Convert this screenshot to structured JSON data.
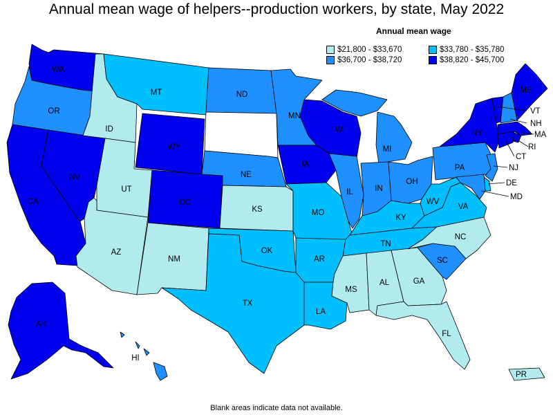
{
  "title": "Annual mean wage of helpers--production workers, by state, May 2022",
  "legend": {
    "title": "Annual mean wage",
    "items": [
      {
        "label": "$21,800 - $33,670",
        "color": "#b2ebee"
      },
      {
        "label": "$33,780 - $35,780",
        "color": "#00bfff"
      },
      {
        "label": "$36,700 - $38,720",
        "color": "#1e90ff"
      },
      {
        "label": "$38,820 - $45,700",
        "color": "#0000ee"
      }
    ]
  },
  "footnote": "Blank areas indicate data not available.",
  "states": {
    "WA": "#0000ee",
    "OR": "#1e90ff",
    "CA": "#0000ee",
    "NV": "#0000ee",
    "ID": "#b2ebee",
    "MT": "#00bfff",
    "WY": "#0000ee",
    "UT": "#b2ebee",
    "AZ": "#b2ebee",
    "CO": "#0000ee",
    "NM": "#b2ebee",
    "ND": "#1e90ff",
    "SD": "#ffffff",
    "NE": "#1e90ff",
    "KS": "#b2ebee",
    "OK": "#00bfff",
    "TX": "#00bfff",
    "MN": "#1e90ff",
    "IA": "#0000ee",
    "MO": "#00bfff",
    "AR": "#00bfff",
    "LA": "#00bfff",
    "WI": "#0000ee",
    "IL": "#1e90ff",
    "MI": "#1e90ff",
    "IN": "#1e90ff",
    "OH": "#1e90ff",
    "KY": "#00bfff",
    "TN": "#00bfff",
    "MS": "#b2ebee",
    "AL": "#b2ebee",
    "GA": "#b2ebee",
    "FL": "#b2ebee",
    "SC": "#1e90ff",
    "NC": "#b2ebee",
    "VA": "#00bfff",
    "WV": "#00bfff",
    "PA": "#1e90ff",
    "NY": "#0000ee",
    "VT": "#0000ee",
    "NH": "#1e90ff",
    "ME": "#0000ee",
    "MA": "#0000ee",
    "RI": "#0000ee",
    "CT": "#0000ee",
    "NJ": "#1e90ff",
    "DE": "#00bfff",
    "MD": "#1e90ff",
    "AK": "#0000ee",
    "HI": "#1e90ff",
    "PR": "#b2ebee"
  },
  "labels": {
    "WA": "WA",
    "OR": "OR",
    "CA": "CA",
    "NV": "NV",
    "ID": "ID",
    "MT": "MT",
    "WY": "WY",
    "UT": "UT",
    "AZ": "AZ",
    "CO": "CO",
    "NM": "NM",
    "ND": "ND",
    "NE": "NE",
    "KS": "KS",
    "OK": "OK",
    "TX": "TX",
    "MN": "MN",
    "IA": "IA",
    "MO": "MO",
    "AR": "AR",
    "LA": "LA",
    "WI": "WI",
    "IL": "IL",
    "MI": "MI",
    "IN": "IN",
    "OH": "OH",
    "KY": "KY",
    "TN": "TN",
    "MS": "MS",
    "AL": "AL",
    "GA": "GA",
    "FL": "FL",
    "SC": "SC",
    "NC": "NC",
    "VA": "VA",
    "WV": "WV",
    "PA": "PA",
    "NY": "NY",
    "VT": "VT",
    "NH": "NH",
    "ME": "ME",
    "MA": "MA",
    "RI": "RI",
    "CT": "CT",
    "NJ": "NJ",
    "DE": "DE",
    "MD": "MD",
    "AK": "AK",
    "HI": "HI",
    "PR": "PR"
  }
}
